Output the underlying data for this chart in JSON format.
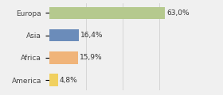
{
  "categories": [
    "Europa",
    "Asia",
    "Africa",
    "America"
  ],
  "values": [
    63.0,
    16.4,
    15.9,
    4.8
  ],
  "labels": [
    "63,0%",
    "16,4%",
    "15,9%",
    "4,8%"
  ],
  "bar_colors": [
    "#b5c98e",
    "#6b8cba",
    "#f0b47a",
    "#f0d060"
  ],
  "background_color": "#f0f0f0",
  "xlim": [
    0,
    80
  ],
  "bar_height": 0.55,
  "label_fontsize": 6.5,
  "tick_fontsize": 6.5,
  "grid_lines": [
    20,
    40,
    60,
    80
  ],
  "grid_color": "#cccccc"
}
